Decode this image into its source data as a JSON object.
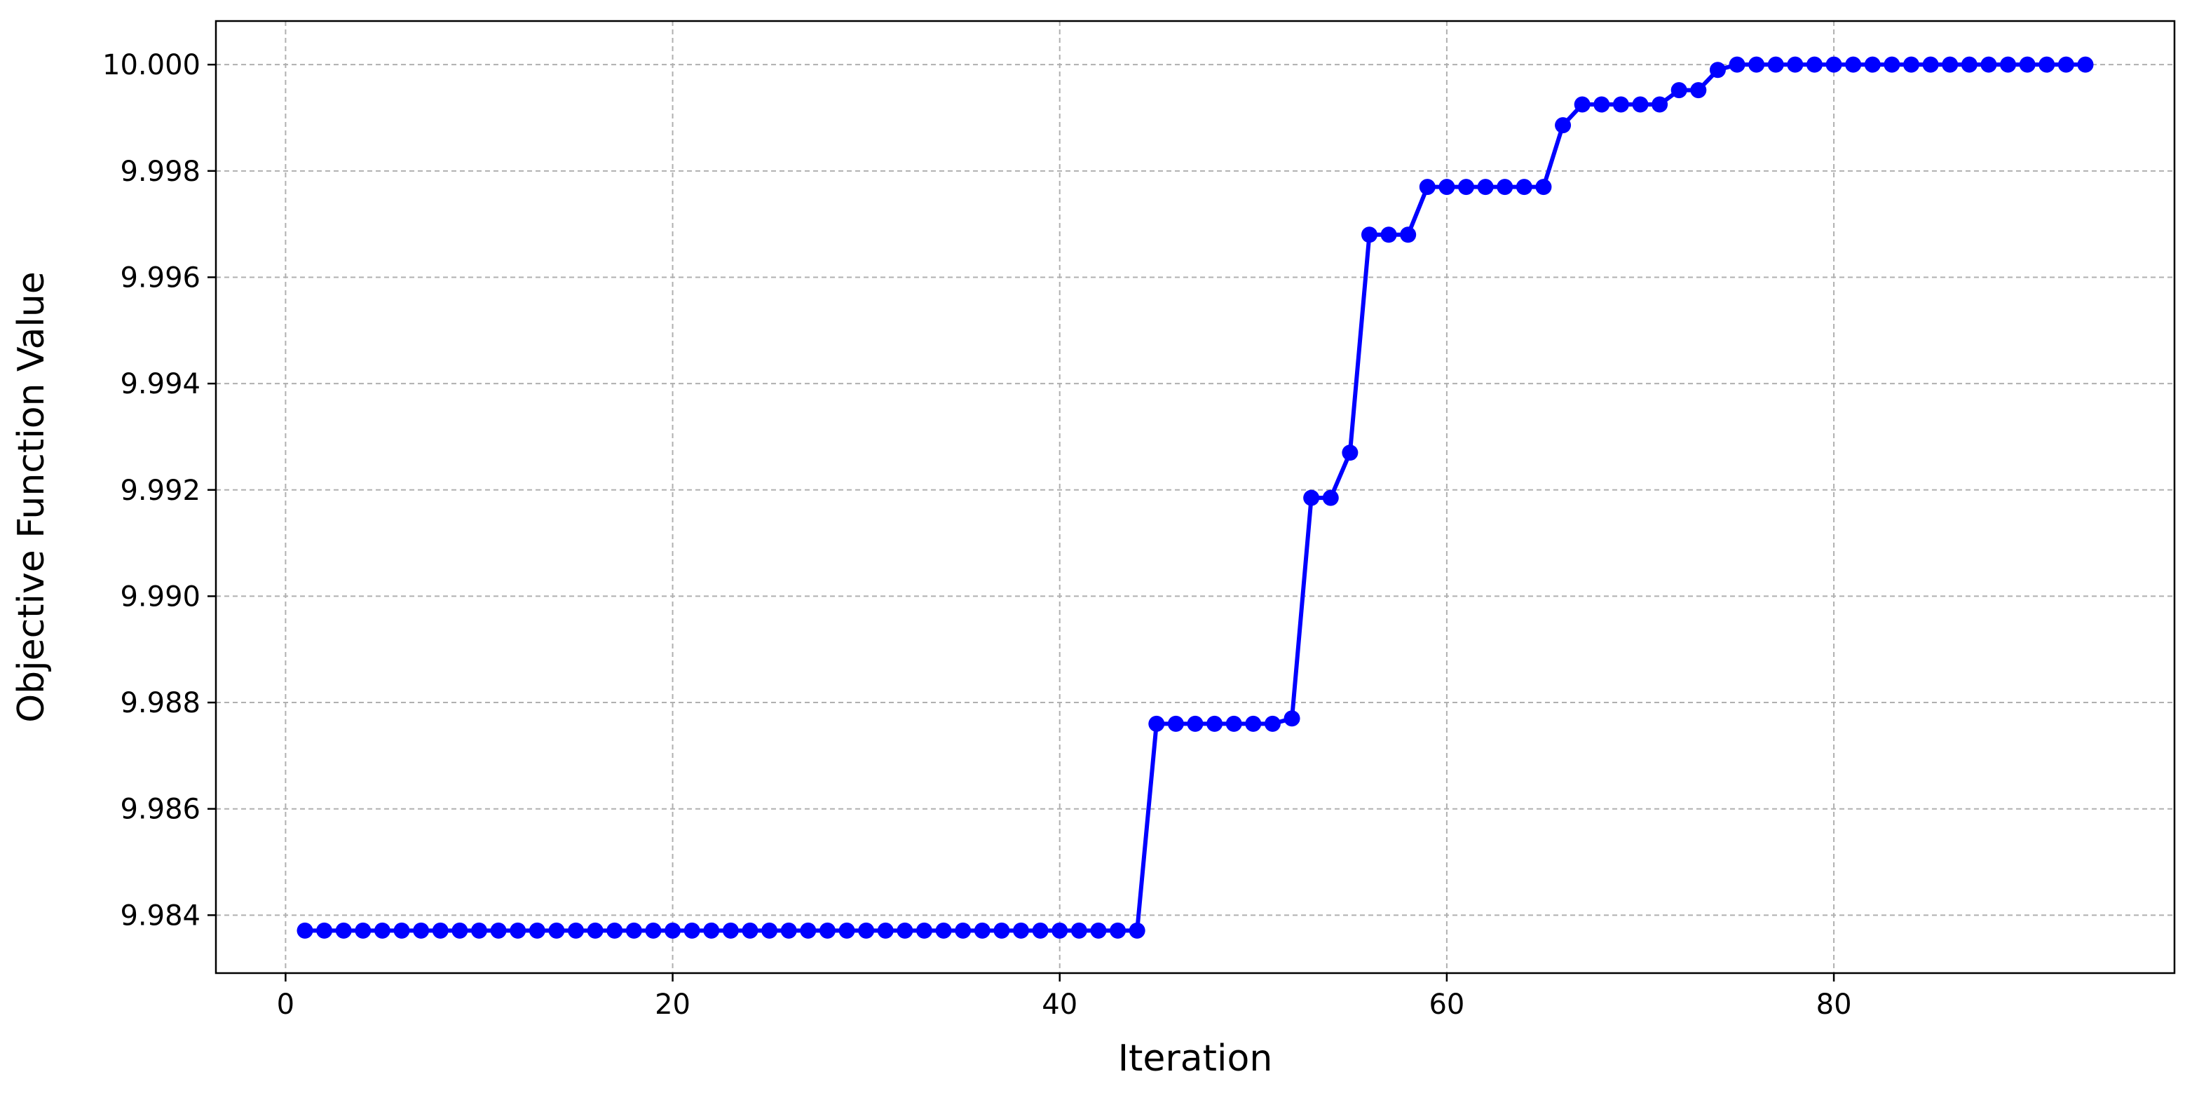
{
  "chart_data": {
    "type": "line",
    "xlabel": "Iteration",
    "ylabel": "Objective Function Value",
    "xlim": [
      -3.6,
      97.6
    ],
    "ylim": [
      9.98291,
      10.00082
    ],
    "xticks": [
      0,
      20,
      40,
      60,
      80
    ],
    "xtick_labels": [
      "0",
      "20",
      "40",
      "60",
      "80"
    ],
    "yticks": [
      9.984,
      9.986,
      9.988,
      9.99,
      9.992,
      9.994,
      9.996,
      9.998,
      10.0
    ],
    "ytick_labels": [
      "9.984",
      "9.986",
      "9.988",
      "9.990",
      "9.992",
      "9.994",
      "9.996",
      "9.998",
      "10.000"
    ],
    "grid": true,
    "line_color": "#0000ff",
    "marker": "circle",
    "series": [
      {
        "x": [
          1,
          2,
          3,
          4,
          5,
          6,
          7,
          8,
          9,
          10,
          11,
          12,
          13,
          14,
          15,
          16,
          17,
          18,
          19,
          20,
          21,
          22,
          23,
          24,
          25,
          26,
          27,
          28,
          29,
          30,
          31,
          32,
          33,
          34,
          35,
          36,
          37,
          38,
          39,
          40,
          41,
          42,
          43,
          44,
          45,
          46,
          47,
          48,
          49,
          50,
          51,
          52,
          53,
          54,
          55,
          56,
          57,
          58,
          59,
          60,
          61,
          62,
          63,
          64,
          65,
          66,
          67,
          68,
          69,
          70,
          71,
          72,
          73,
          74,
          75,
          76,
          77,
          78,
          79,
          80,
          81,
          82,
          83,
          84,
          85,
          86,
          87,
          88,
          89,
          90,
          91,
          92,
          93
        ],
        "values": [
          9.98371,
          9.98371,
          9.98371,
          9.98371,
          9.98371,
          9.98371,
          9.98371,
          9.98371,
          9.98371,
          9.98371,
          9.98371,
          9.98371,
          9.98371,
          9.98371,
          9.98371,
          9.98371,
          9.98371,
          9.98371,
          9.98371,
          9.98371,
          9.98371,
          9.98371,
          9.98371,
          9.98371,
          9.98371,
          9.98371,
          9.98371,
          9.98371,
          9.98371,
          9.98371,
          9.98371,
          9.98371,
          9.98371,
          9.98371,
          9.98371,
          9.98371,
          9.98371,
          9.98371,
          9.98371,
          9.98371,
          9.98371,
          9.98371,
          9.98371,
          9.98371,
          9.9876,
          9.9876,
          9.9876,
          9.9876,
          9.9876,
          9.9876,
          9.9876,
          9.9877,
          9.99185,
          9.99185,
          9.9927,
          9.9968,
          9.9968,
          9.9968,
          9.9977,
          9.9977,
          9.9977,
          9.9977,
          9.9977,
          9.9977,
          9.9977,
          9.99886,
          9.99925,
          9.99925,
          9.99925,
          9.99925,
          9.99925,
          9.99952,
          9.99952,
          9.9999,
          10.0,
          10.0,
          10.0,
          10.0,
          10.0,
          10.0,
          10.0,
          10.0,
          10.0,
          10.0,
          10.0,
          10.0,
          10.0,
          10.0,
          10.0,
          10.0,
          10.0,
          10.0,
          10.0
        ]
      }
    ]
  }
}
